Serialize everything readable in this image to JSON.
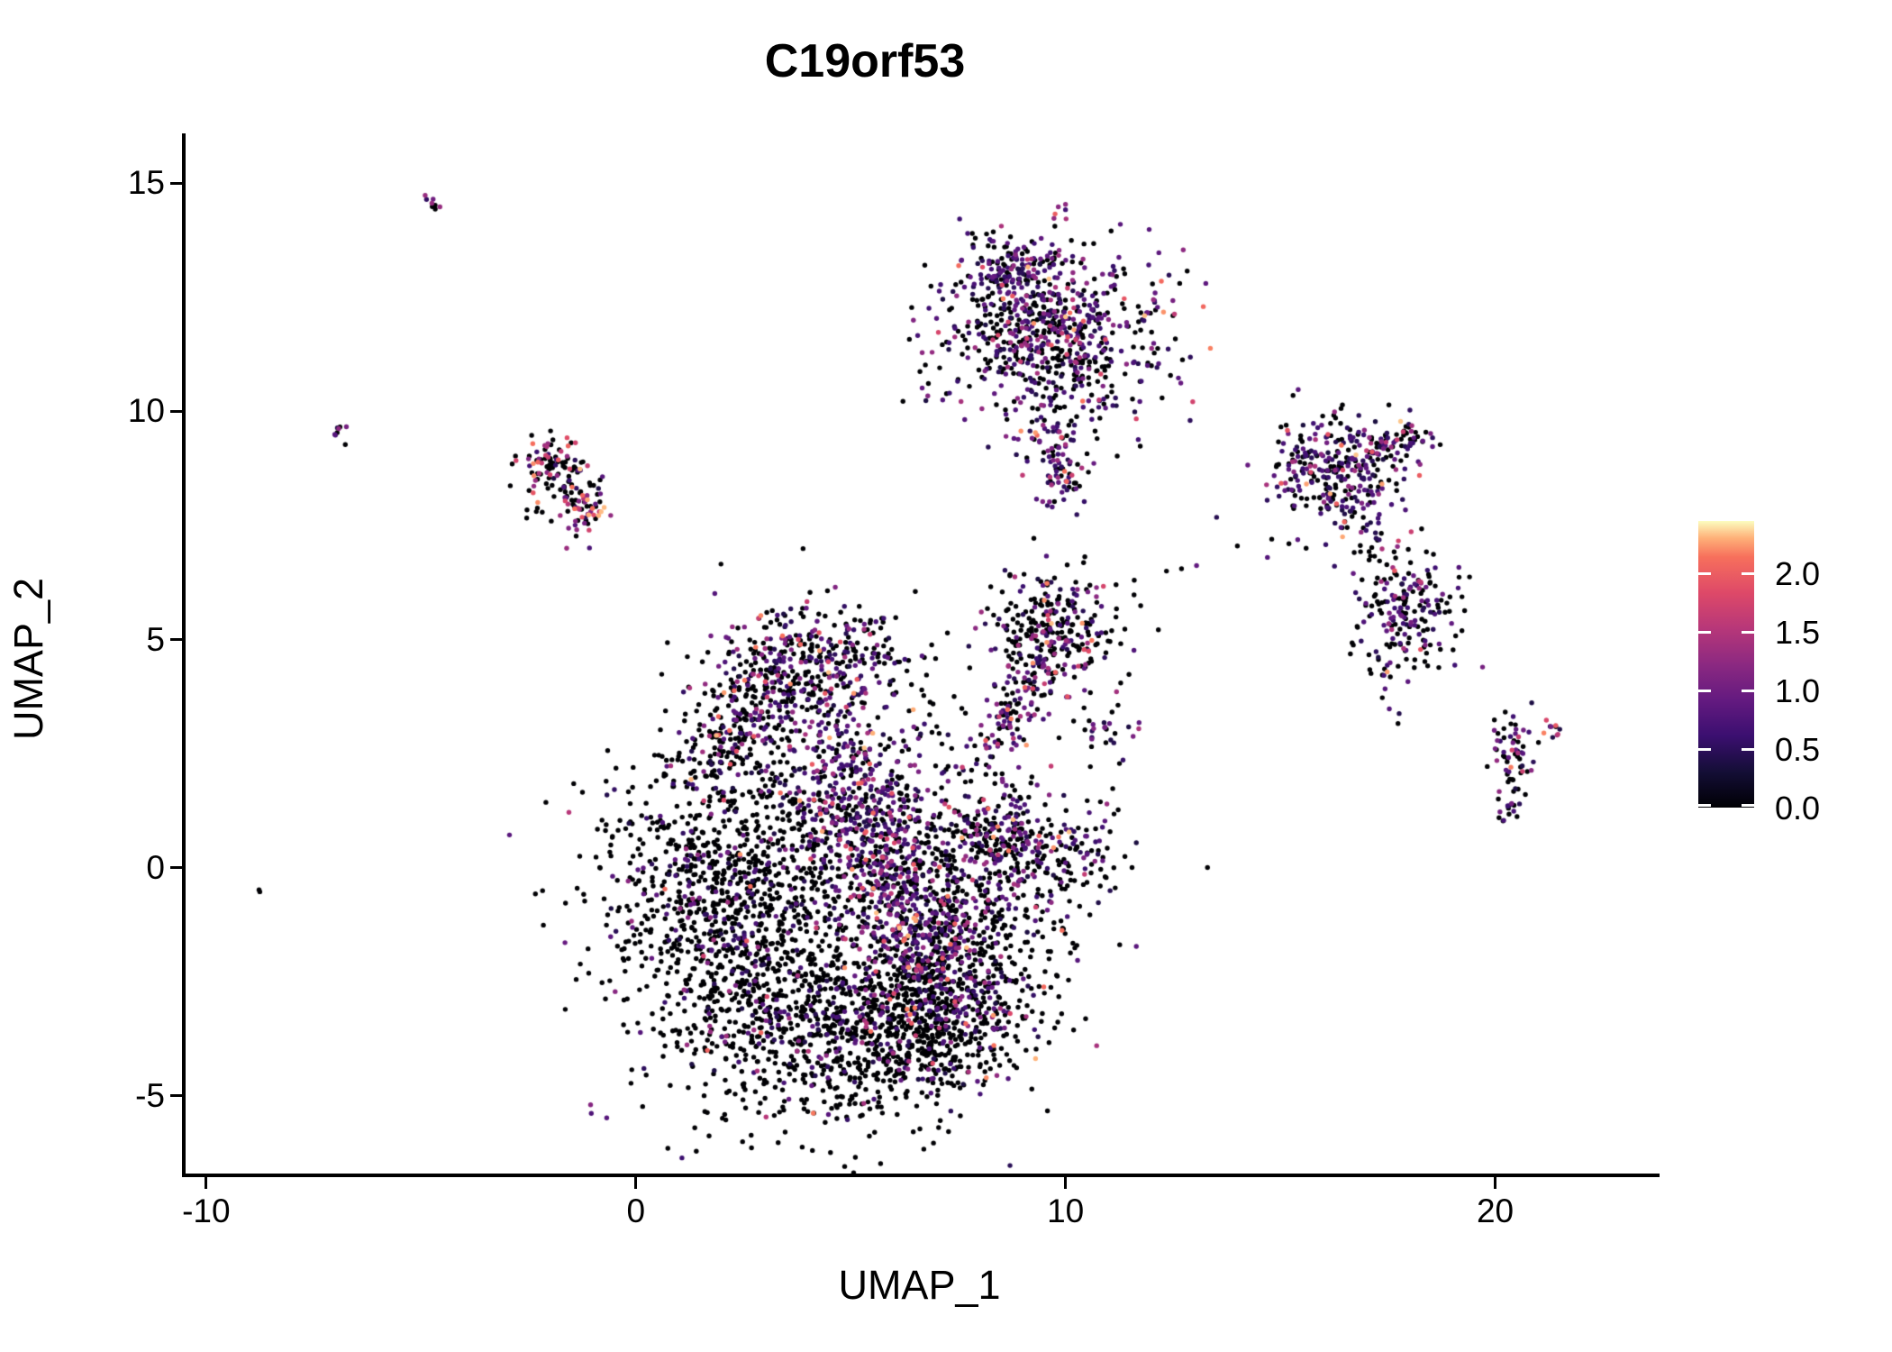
{
  "title": "C19orf53",
  "colors": {
    "background": "#ffffff",
    "axis": "#000000",
    "text": "#000000",
    "zero_expression_point": "#000004",
    "high_expression_point": "#fcfdbf"
  },
  "chart_data": {
    "type": "scatter",
    "title": "C19orf53",
    "xlabel": "UMAP_1",
    "ylabel": "UMAP_2",
    "xlim": [
      -10.5,
      23.7
    ],
    "ylim": [
      -6.7,
      16.05
    ],
    "grid": false,
    "legend_position": "right",
    "point_radius": 2.7,
    "x_ticks": [
      {
        "value": -10,
        "label": "-10"
      },
      {
        "value": 0,
        "label": "0"
      },
      {
        "value": 10,
        "label": "10"
      },
      {
        "value": 20,
        "label": "20"
      }
    ],
    "y_ticks": [
      {
        "value": 15,
        "label": "15"
      },
      {
        "value": 10,
        "label": "10"
      },
      {
        "value": 5,
        "label": "5"
      },
      {
        "value": 0,
        "label": "0"
      },
      {
        "value": -5,
        "label": "-5"
      }
    ],
    "colorbar": {
      "min": 0.0,
      "max": 2.45,
      "ticks": [
        {
          "value": 2.0,
          "label": "2.0"
        },
        {
          "value": 1.5,
          "label": "1.5"
        },
        {
          "value": 1.0,
          "label": "1.0"
        },
        {
          "value": 0.5,
          "label": "0.5"
        },
        {
          "value": 0.0,
          "label": "0.0"
        }
      ],
      "colormap": "magma",
      "stops": [
        [
          0.0,
          "#000004"
        ],
        [
          0.125,
          "#140e36"
        ],
        [
          0.25,
          "#3b0f70"
        ],
        [
          0.375,
          "#641a80"
        ],
        [
          0.5,
          "#8c2981"
        ],
        [
          0.625,
          "#b73779"
        ],
        [
          0.75,
          "#de4968"
        ],
        [
          0.875,
          "#f7705c"
        ],
        [
          0.94,
          "#feb078"
        ],
        [
          1.0,
          "#fcfdbf"
        ]
      ]
    },
    "value_ranges": {
      "zero": [
        0.0,
        0.0
      ],
      "low": [
        0.35,
        0.95
      ],
      "mid": [
        1.0,
        1.45
      ],
      "high": [
        1.5,
        2.35
      ]
    },
    "clusters": [
      {
        "name": "main-left-lobe",
        "shape": "gauss",
        "cx": 2.1,
        "cy": -0.9,
        "sdx": 1.4,
        "sdy": 1.6,
        "n": 850,
        "mix": [
          0.86,
          0.09,
          0.035,
          0.015
        ]
      },
      {
        "name": "main-bottom-lobe",
        "shape": "gauss",
        "cx": 4.9,
        "cy": -3.7,
        "sdx": 1.8,
        "sdy": 1.0,
        "n": 750,
        "mix": [
          0.82,
          0.13,
          0.035,
          0.015
        ]
      },
      {
        "name": "main-purple-band",
        "shape": "band",
        "x1": 4.6,
        "y1": 2.8,
        "x2": 7.1,
        "y2": -2.6,
        "sd": 0.75,
        "n": 780,
        "mix": [
          0.25,
          0.52,
          0.16,
          0.07
        ]
      },
      {
        "name": "main-top-bump",
        "shape": "gauss",
        "cx": 4.1,
        "cy": 4.5,
        "sdx": 1.15,
        "sdy": 0.65,
        "n": 330,
        "mix": [
          0.55,
          0.33,
          0.08,
          0.04
        ]
      },
      {
        "name": "main-right-lobe",
        "shape": "gauss",
        "cx": 7.6,
        "cy": -1.6,
        "sdx": 1.05,
        "sdy": 1.3,
        "n": 500,
        "mix": [
          0.72,
          0.2,
          0.05,
          0.03
        ]
      },
      {
        "name": "main-ne-arm",
        "shape": "band",
        "x1": 7.7,
        "y1": 1.0,
        "x2": 9.6,
        "y2": 0.3,
        "sd": 0.5,
        "n": 240,
        "mix": [
          0.45,
          0.35,
          0.13,
          0.07
        ]
      },
      {
        "name": "main-fill",
        "shape": "gauss",
        "cx": 4.6,
        "cy": 0.2,
        "sdx": 2.4,
        "sdy": 2.3,
        "n": 900,
        "mix": [
          0.72,
          0.22,
          0.04,
          0.02
        ]
      },
      {
        "name": "main-upperleft-edge",
        "shape": "band",
        "x1": 1.6,
        "y1": 2.2,
        "x2": 3.3,
        "y2": 4.3,
        "sd": 0.55,
        "n": 220,
        "mix": [
          0.6,
          0.3,
          0.07,
          0.03
        ]
      },
      {
        "name": "main-bottomright-bump",
        "shape": "gauss",
        "cx": 7.0,
        "cy": -3.4,
        "sdx": 0.9,
        "sdy": 0.8,
        "n": 260,
        "mix": [
          0.75,
          0.17,
          0.05,
          0.03
        ]
      },
      {
        "name": "bridge-to-ring",
        "shape": "band",
        "x1": 8.3,
        "y1": 2.6,
        "x2": 9.3,
        "y2": 4.6,
        "sd": 0.35,
        "n": 110,
        "mix": [
          0.35,
          0.35,
          0.2,
          0.1
        ]
      },
      {
        "name": "arm-east-sparse",
        "shape": "gauss",
        "cx": 10.6,
        "cy": 0.2,
        "sdx": 0.5,
        "sdy": 0.55,
        "n": 70,
        "mix": [
          0.6,
          0.28,
          0.08,
          0.04
        ]
      },
      {
        "name": "dots-ne-of-arm",
        "shape": "gauss",
        "cx": 10.8,
        "cy": 3.0,
        "sdx": 0.4,
        "sdy": 0.4,
        "n": 25,
        "mix": [
          0.5,
          0.35,
          0.1,
          0.05
        ]
      },
      {
        "name": "top-cluster-main",
        "shape": "gauss",
        "cx": 9.7,
        "cy": 11.6,
        "sdx": 1.25,
        "sdy": 0.95,
        "n": 720,
        "mix": [
          0.47,
          0.38,
          0.1,
          0.05
        ]
      },
      {
        "name": "top-cluster-upper",
        "shape": "gauss",
        "cx": 8.7,
        "cy": 13.1,
        "sdx": 0.5,
        "sdy": 0.4,
        "n": 130,
        "mix": [
          0.45,
          0.4,
          0.1,
          0.05
        ]
      },
      {
        "name": "top-cluster-tail",
        "shape": "band",
        "x1": 9.6,
        "y1": 9.6,
        "x2": 10.1,
        "y2": 8.1,
        "sd": 0.3,
        "n": 90,
        "mix": [
          0.35,
          0.45,
          0.13,
          0.07
        ]
      },
      {
        "name": "top-cluster-spur",
        "shape": "band",
        "x1": 9.7,
        "y1": 13.2,
        "x2": 9.8,
        "y2": 13.7,
        "sd": 0.09,
        "n": 8,
        "mix": [
          0.2,
          0.3,
          0.5,
          0
        ]
      },
      {
        "name": "top-spur-high",
        "shape": "gauss",
        "cx": 9.9,
        "cy": 14.35,
        "sdx": 0.1,
        "sdy": 0.14,
        "n": 6,
        "mix": [
          0.15,
          0.15,
          0.3,
          0.4
        ]
      },
      {
        "name": "ring-cluster",
        "shape": "gauss",
        "cx": 9.7,
        "cy": 5.2,
        "sdx": 0.8,
        "sdy": 0.75,
        "n": 290,
        "mix": [
          0.62,
          0.22,
          0.09,
          0.07
        ]
      },
      {
        "name": "right-a",
        "shape": "gauss",
        "cx": 16.3,
        "cy": 8.7,
        "sdx": 0.75,
        "sdy": 0.65,
        "n": 300,
        "mix": [
          0.44,
          0.4,
          0.1,
          0.06
        ]
      },
      {
        "name": "right-a-streak",
        "shape": "band",
        "x1": 16.9,
        "y1": 9.0,
        "x2": 18.4,
        "y2": 9.6,
        "sd": 0.22,
        "n": 70,
        "mix": [
          0.45,
          0.4,
          0.1,
          0.05
        ]
      },
      {
        "name": "right-b",
        "shape": "gauss",
        "cx": 17.9,
        "cy": 5.6,
        "sdx": 0.55,
        "sdy": 0.8,
        "n": 210,
        "mix": [
          0.5,
          0.35,
          0.1,
          0.05
        ]
      },
      {
        "name": "right-ab-connector",
        "shape": "gauss",
        "cx": 17.0,
        "cy": 7.2,
        "sdx": 0.3,
        "sdy": 0.3,
        "n": 15,
        "mix": [
          0.5,
          0.35,
          0.1,
          0.05
        ]
      },
      {
        "name": "far-right-main",
        "shape": "gauss",
        "cx": 20.35,
        "cy": 2.55,
        "sdx": 0.28,
        "sdy": 0.45,
        "n": 60,
        "mix": [
          0.5,
          0.3,
          0.14,
          0.06
        ]
      },
      {
        "name": "far-right-tail",
        "shape": "gauss",
        "cx": 20.3,
        "cy": 1.35,
        "sdx": 0.15,
        "sdy": 0.25,
        "n": 18,
        "mix": [
          0.55,
          0.25,
          0.15,
          0.05
        ]
      },
      {
        "name": "far-right-clump",
        "shape": "gauss",
        "cx": 21.4,
        "cy": 2.9,
        "sdx": 0.15,
        "sdy": 0.15,
        "n": 10,
        "mix": [
          0.1,
          0.2,
          0.3,
          0.4
        ]
      },
      {
        "name": "left-cluster-arc",
        "shape": "band",
        "x1": -2.5,
        "y1": 8.7,
        "x2": -1.6,
        "y2": 9.15,
        "sd": 0.25,
        "n": 50,
        "mix": [
          0.45,
          0.15,
          0.15,
          0.25
        ]
      },
      {
        "name": "left-cluster-clump",
        "shape": "gauss",
        "cx": -1.3,
        "cy": 7.9,
        "sdx": 0.28,
        "sdy": 0.3,
        "n": 60,
        "mix": [
          0.35,
          0.15,
          0.3,
          0.2
        ]
      },
      {
        "name": "left-cluster-scatter",
        "shape": "gauss",
        "cx": -1.9,
        "cy": 8.5,
        "sdx": 0.5,
        "sdy": 0.45,
        "n": 60,
        "mix": [
          0.75,
          0.1,
          0.1,
          0.05
        ]
      },
      {
        "name": "tiny-left",
        "shape": "gauss",
        "cx": -6.9,
        "cy": 9.6,
        "sdx": 0.12,
        "sdy": 0.15,
        "n": 8,
        "mix": [
          0.6,
          0.15,
          0.25,
          0
        ]
      },
      {
        "name": "tiny-topleft-streak",
        "shape": "band",
        "x1": -4.95,
        "y1": 14.7,
        "x2": -4.6,
        "y2": 14.45,
        "sd": 0.08,
        "n": 8,
        "mix": [
          0.25,
          0.35,
          0.4,
          0
        ]
      },
      {
        "name": "outlier-left",
        "shape": "gauss",
        "cx": -8.75,
        "cy": -0.5,
        "sdx": 0.05,
        "sdy": 0.05,
        "n": 2,
        "mix": [
          1,
          0,
          0,
          0
        ]
      }
    ],
    "extra_points": [
      [
        12.35,
        6.5,
        0
      ],
      [
        12.7,
        6.55,
        0
      ],
      [
        13.05,
        6.62,
        0.9
      ],
      [
        11.6,
        6.3,
        0
      ],
      [
        14.0,
        7.05,
        0
      ],
      [
        14.8,
        7.2,
        0
      ],
      [
        15.2,
        7.1,
        0
      ],
      [
        15.6,
        7.0,
        0
      ],
      [
        14.7,
        6.8,
        0.8
      ],
      [
        7.5,
        10.7,
        0
      ],
      [
        7.3,
        10.4,
        0.6
      ],
      [
        12.0,
        11.0,
        0
      ],
      [
        12.9,
        9.8,
        0.5
      ],
      [
        9.0,
        8.6,
        1.6
      ],
      [
        10.15,
        8.6,
        1.7
      ]
    ]
  }
}
